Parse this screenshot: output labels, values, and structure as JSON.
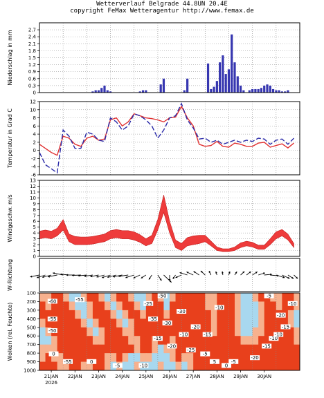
{
  "header": {
    "line1": "Wetterverlauf Belgrade  44.8UN 20.4E",
    "line2": "copyright FeMax Wetteragentur http://www.femax.de"
  },
  "colors": {
    "precip_bar": "#3636b0",
    "temp_line": "#e03030",
    "dewpoint_line": "#2a2aa8",
    "wind_band": "#ee3b3b",
    "cloud_high": "#e8401c",
    "cloud_mid": "#f7b18e",
    "cloud_low": "#a8d8ef",
    "cloud_min": "#ffffff"
  },
  "chart_data": [
    {
      "type": "bar",
      "panel": "precip",
      "ylabel": "Niederschlag in mm",
      "ylim": [
        0,
        3.0
      ],
      "yticks": [
        "0",
        "0.3",
        "0.6",
        "0.9",
        "1.2",
        "1.5",
        "1.8",
        "2.1",
        "2.4",
        "2.7"
      ],
      "x_start": 0.0,
      "x_step": 0.125,
      "values": [
        0,
        0,
        0,
        0,
        0,
        0,
        0,
        0,
        0,
        0,
        0,
        0,
        0,
        0,
        0,
        0,
        0,
        0,
        0.05,
        0.1,
        0.1,
        0.2,
        0.3,
        0.1,
        0.05,
        0,
        0,
        0,
        0,
        0,
        0,
        0,
        0,
        0,
        0.05,
        0.1,
        0.1,
        0,
        0,
        0,
        0,
        0.35,
        0.6,
        0,
        0,
        0,
        0,
        0,
        0,
        0.1,
        0.6,
        0,
        0,
        0,
        0,
        0,
        0,
        1.25,
        0.15,
        0.25,
        0.5,
        1.3,
        1.6,
        0.8,
        1.0,
        2.5,
        1.3,
        0.7,
        0.3,
        0.1,
        0,
        0.1,
        0.15,
        0.15,
        0.15,
        0.2,
        0.3,
        0.35,
        0.3,
        0.15,
        0.1,
        0.1,
        0.05,
        0.05,
        0.1,
        0,
        0
      ]
    },
    {
      "type": "line",
      "panel": "temp",
      "ylabel": "Temperatur in Grad C",
      "ylim": [
        -6,
        12
      ],
      "yticks": [
        "-6",
        "-4",
        "-2",
        "0",
        "2",
        "4",
        "6",
        "8",
        "10",
        "12"
      ],
      "x": [
        0,
        0.25,
        0.5,
        0.75,
        1.0,
        1.25,
        1.5,
        1.75,
        2.0,
        2.25,
        2.5,
        2.75,
        3.0,
        3.25,
        3.5,
        3.75,
        4.0,
        4.25,
        4.5,
        4.75,
        5.0,
        5.25,
        5.5,
        5.75,
        6.0,
        6.25,
        6.5,
        6.75,
        7.0,
        7.25,
        7.5,
        7.75,
        8.0,
        8.25,
        8.5,
        8.75,
        9.0,
        9.25,
        9.5,
        9.75,
        10.0,
        10.25,
        10.5,
        10.75
      ],
      "series": [
        {
          "values": [
            1.5,
            0.5,
            -0.5,
            -1.2,
            3.5,
            3.0,
            1.5,
            1.0,
            3.0,
            3.5,
            2.5,
            2.8,
            7.5,
            8.0,
            6.0,
            7.0,
            9.0,
            8.5,
            8.0,
            7.8,
            7.5,
            7.0,
            8.0,
            8.2,
            10.8,
            8.0,
            6.0,
            1.5,
            1.0,
            1.2,
            2.2,
            1.0,
            0.8,
            1.8,
            1.5,
            1.0,
            1.0,
            1.8,
            2.0,
            0.8,
            1.2,
            1.6,
            0.6,
            1.8
          ]
        },
        {
          "values": [
            -0.5,
            -3.5,
            -4.5,
            -5.5,
            5.0,
            3.5,
            0.5,
            0.5,
            4.5,
            4.0,
            2.5,
            2.2,
            8.0,
            7.0,
            5.0,
            6.0,
            9.0,
            8.5,
            7.5,
            6.0,
            3.0,
            5.0,
            8.0,
            8.5,
            11.5,
            7.5,
            5.5,
            2.8,
            3.0,
            2.0,
            2.5,
            1.5,
            2.0,
            2.5,
            2.0,
            2.5,
            2.2,
            3.0,
            2.8,
            1.5,
            2.5,
            2.8,
            1.5,
            3.0
          ]
        }
      ]
    },
    {
      "type": "area",
      "panel": "wind",
      "ylabel": "Windgeschw. m/s",
      "ylim": [
        0,
        13
      ],
      "yticks": [
        "0",
        "1",
        "2",
        "3",
        "4",
        "5",
        "6",
        "7",
        "8",
        "9",
        "10",
        "11",
        "12",
        "13"
      ],
      "x": [
        0,
        0.25,
        0.5,
        0.75,
        1.0,
        1.25,
        1.5,
        1.75,
        2.0,
        2.25,
        2.5,
        2.75,
        3.0,
        3.25,
        3.5,
        3.75,
        4.0,
        4.25,
        4.5,
        4.75,
        5.0,
        5.25,
        5.5,
        5.75,
        6.0,
        6.25,
        6.5,
        6.75,
        7.0,
        7.25,
        7.5,
        7.75,
        8.0,
        8.25,
        8.5,
        8.75,
        9.0,
        9.25,
        9.5,
        9.75,
        10.0,
        10.25,
        10.5,
        10.75
      ],
      "lower": [
        3.0,
        3.2,
        3.0,
        3.5,
        4.5,
        2.5,
        2.0,
        2.0,
        2.0,
        2.1,
        2.3,
        2.5,
        3.0,
        3.2,
        3.0,
        3.0,
        2.8,
        2.4,
        1.8,
        2.2,
        4.5,
        7.5,
        4.0,
        1.5,
        1.0,
        1.8,
        2.0,
        2.2,
        2.5,
        1.8,
        1.0,
        0.8,
        0.8,
        1.0,
        1.5,
        1.8,
        1.6,
        1.2,
        1.2,
        2.0,
        3.0,
        3.5,
        2.8,
        1.5
      ],
      "upper": [
        4.3,
        4.5,
        4.3,
        4.8,
        6.3,
        3.8,
        3.4,
        3.3,
        3.3,
        3.4,
        3.6,
        3.8,
        4.4,
        4.6,
        4.4,
        4.4,
        4.2,
        3.7,
        3.0,
        3.6,
        6.3,
        10.5,
        6.0,
        2.8,
        2.2,
        3.2,
        3.5,
        3.6,
        3.6,
        2.6,
        1.6,
        1.3,
        1.3,
        1.6,
        2.3,
        2.6,
        2.4,
        1.9,
        1.9,
        3.0,
        4.2,
        4.6,
        3.8,
        2.2
      ]
    },
    {
      "type": "heatmap",
      "panel": "wind_direction",
      "ylabel": "W-Richtung",
      "x": [
        0,
        0.25,
        0.5,
        0.75,
        1.0,
        1.25,
        1.5,
        1.75,
        2.0,
        2.25,
        2.5,
        2.75,
        3.0,
        3.25,
        3.5,
        3.75,
        4.0,
        4.25,
        4.5,
        4.75,
        5.0,
        5.25,
        5.5,
        5.75,
        6.0,
        6.25,
        6.5,
        6.75,
        7.0,
        7.25,
        7.5,
        7.75,
        8.0,
        8.25,
        8.5,
        8.75,
        9.0,
        9.25,
        9.5,
        9.75,
        10.0,
        10.25,
        10.5,
        10.75
      ],
      "direction_deg": [
        250,
        240,
        245,
        250,
        290,
        280,
        270,
        265,
        260,
        255,
        250,
        245,
        240,
        245,
        250,
        255,
        240,
        230,
        220,
        200,
        160,
        150,
        180,
        200,
        230,
        300,
        310,
        320,
        330,
        345,
        350,
        355,
        10,
        20,
        30,
        35,
        40,
        60,
        80,
        100,
        120,
        130,
        140,
        150
      ],
      "speed": [
        4,
        4,
        4,
        4,
        5,
        3,
        3,
        3,
        3,
        3,
        3,
        3,
        4,
        4,
        4,
        4,
        4,
        3,
        2,
        3,
        5,
        9,
        5,
        2,
        2,
        3,
        3,
        3,
        3,
        2,
        1,
        1,
        1,
        1,
        2,
        2,
        2,
        2,
        2,
        3,
        4,
        4,
        3,
        2
      ]
    },
    {
      "type": "heatmap",
      "panel": "clouds",
      "ylabel": "Wolken (rel. Feuchte)",
      "ylim": [
        1000,
        100
      ],
      "yticks": [
        "100",
        "200",
        "300",
        "400",
        "500",
        "600",
        "700",
        "800",
        "900",
        "1000"
      ],
      "contour_labels": [
        "-60",
        "-55",
        "-50",
        "-55",
        "-55",
        "-50",
        "-35",
        "-30",
        "-30",
        "-25",
        "-20",
        "-15",
        "-10",
        "-5",
        "-10",
        "-20",
        "-15",
        "-10",
        "-5",
        "0",
        "0",
        "-5",
        "-10",
        "-15",
        "-20",
        "-10",
        "-5",
        "0",
        "-25",
        "-20",
        "-15",
        "-10",
        "5"
      ],
      "rows_top_to_bottom": [
        [
          0.6,
          0.6,
          0.9,
          0.9,
          0.6,
          0.3,
          0.3,
          0.6,
          0.9,
          0.9,
          0.6,
          0.3,
          0.6,
          0.9,
          0.9,
          0.6,
          0.3,
          0.3,
          0.6,
          0.9,
          0.6,
          0.3,
          0.6,
          0.9,
          0.9,
          0.9,
          0.9,
          0.9,
          0.6,
          0.6,
          0.9,
          0.9,
          0.9,
          0.6,
          0.3,
          0.3,
          0.6,
          0.9,
          0.9,
          0.6,
          0.6,
          0.9,
          0.9,
          0.6
        ],
        [
          0.9,
          0.6,
          0.9,
          0.9,
          0.9,
          0.6,
          0.3,
          0.3,
          0.6,
          0.9,
          0.9,
          0.6,
          0.3,
          0.6,
          0.9,
          0.9,
          0.6,
          0.3,
          0.9,
          0.9,
          0.9,
          0.3,
          0.9,
          0.9,
          0.9,
          0.9,
          0.9,
          0.9,
          0.6,
          0.6,
          0.9,
          0.9,
          0.9,
          0.6,
          0.3,
          0.3,
          0.3,
          0.6,
          0.9,
          0.9,
          0.6,
          0.9,
          0.9,
          0.6
        ],
        [
          0.9,
          0.9,
          0.9,
          0.9,
          0.9,
          0.9,
          0.6,
          0.3,
          0.6,
          0.9,
          0.9,
          0.9,
          0.6,
          0.3,
          0.6,
          0.9,
          0.9,
          0.6,
          0.9,
          0.9,
          0.9,
          0.6,
          0.9,
          0.9,
          0.9,
          0.9,
          0.9,
          0.9,
          0.9,
          0.6,
          0.9,
          0.9,
          0.9,
          0.6,
          0.3,
          0.3,
          0.3,
          0.6,
          0.9,
          0.9,
          0.9,
          0.9,
          0.6,
          0.3
        ],
        [
          0.6,
          0.9,
          0.9,
          0.9,
          0.9,
          0.9,
          0.9,
          0.6,
          0.3,
          0.6,
          0.9,
          0.9,
          0.9,
          0.6,
          0.3,
          0.6,
          0.9,
          0.9,
          0.9,
          0.9,
          0.9,
          0.9,
          0.9,
          0.9,
          0.9,
          0.9,
          0.9,
          0.9,
          0.9,
          0.6,
          0.9,
          0.9,
          0.9,
          0.6,
          0.3,
          0.3,
          0.3,
          0.6,
          0.9,
          0.9,
          0.9,
          0.9,
          0.6,
          0.3
        ],
        [
          0.3,
          0.6,
          0.9,
          0.9,
          0.9,
          0.9,
          0.9,
          0.9,
          0.6,
          0.3,
          0.6,
          0.9,
          0.9,
          0.9,
          0.6,
          0.6,
          0.9,
          0.9,
          0.9,
          0.9,
          0.9,
          0.9,
          0.9,
          0.9,
          0.9,
          0.9,
          0.9,
          0.9,
          0.9,
          0.6,
          0.9,
          0.9,
          0.9,
          0.6,
          0.3,
          0.3,
          0.6,
          0.6,
          0.9,
          0.9,
          0.9,
          0.9,
          0.9,
          0.6
        ],
        [
          0.3,
          0.3,
          0.6,
          0.9,
          0.9,
          0.9,
          0.9,
          0.9,
          0.9,
          0.6,
          0.6,
          0.9,
          0.9,
          0.9,
          0.9,
          0.6,
          0.6,
          0.9,
          0.9,
          0.6,
          0.9,
          0.9,
          0.6,
          0.9,
          0.9,
          0.9,
          0.9,
          0.9,
          0.9,
          0.9,
          0.9,
          0.9,
          0.9,
          0.9,
          0.6,
          0.6,
          0.6,
          0.9,
          0.9,
          0.9,
          0.9,
          0.9,
          0.9,
          0.6
        ],
        [
          0.6,
          0.6,
          0.6,
          0.9,
          0.9,
          0.9,
          0.9,
          0.9,
          0.9,
          0.9,
          0.9,
          0.9,
          0.9,
          0.9,
          0.9,
          0.9,
          0.6,
          0.9,
          0.9,
          0.6,
          0.3,
          0.6,
          0.6,
          0.9,
          0.9,
          0.9,
          0.9,
          0.9,
          0.9,
          0.9,
          0.9,
          0.9,
          0.9,
          0.9,
          0.9,
          0.9,
          0.9,
          0.9,
          0.9,
          0.9,
          0.9,
          0.9,
          0.9,
          0.9
        ],
        [
          0.6,
          0.9,
          0.6,
          0.6,
          0.9,
          0.9,
          0.9,
          0.9,
          0.9,
          0.9,
          0.9,
          0.6,
          0.6,
          0.9,
          0.6,
          0.3,
          0.3,
          0.6,
          0.6,
          0.3,
          0.3,
          0.3,
          0.6,
          0.9,
          0.6,
          0.6,
          0.9,
          0.9,
          0.9,
          0.9,
          0.9,
          0.9,
          0.9,
          0.9,
          0.9,
          0.9,
          0.9,
          0.9,
          0.9,
          0.9,
          0.9,
          0.9,
          0.9,
          0.9
        ],
        [
          0.9,
          0.9,
          0.9,
          0.6,
          0.6,
          0.9,
          0.9,
          0.6,
          0.6,
          0.9,
          0.9,
          0.6,
          0.3,
          0.6,
          0.3,
          0.3,
          0.6,
          0.3,
          0.3,
          0.3,
          0.6,
          0.3,
          0.3,
          0.6,
          0.3,
          0.6,
          0.9,
          0.9,
          0.9,
          0.9,
          0.9,
          0.9,
          0.9,
          0.9,
          0.9,
          0.9,
          0.9,
          0.9,
          0.9,
          0.9,
          0.9,
          0.9,
          0.9,
          0.9
        ]
      ]
    }
  ],
  "x_axis": {
    "day_labels": [
      "21JAN",
      "22JAN",
      "23JAN",
      "24JAN",
      "25JAN",
      "26JAN",
      "27JAN",
      "28JAN",
      "29JAN",
      "30JAN"
    ],
    "year_label": "2026"
  }
}
